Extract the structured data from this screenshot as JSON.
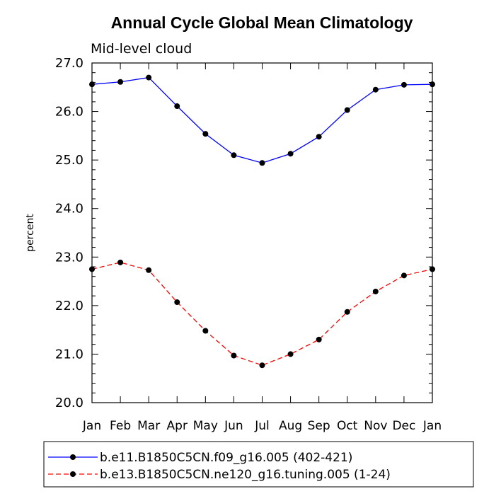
{
  "chart_data": {
    "type": "line",
    "title": "Annual Cycle Global Mean Climatology",
    "subtitle": "Mid-level cloud",
    "xlabel": "",
    "ylabel": "percent",
    "categories": [
      "Jan",
      "Feb",
      "Mar",
      "Apr",
      "May",
      "Jun",
      "Jul",
      "Aug",
      "Sep",
      "Oct",
      "Nov",
      "Dec",
      "Jan"
    ],
    "ylim": [
      20.0,
      27.0
    ],
    "yticks": [
      "20.0",
      "21.0",
      "22.0",
      "23.0",
      "24.0",
      "25.0",
      "26.0",
      "27.0"
    ],
    "grid": false,
    "legend_position": "bottom",
    "series": [
      {
        "name": "b.e11.B1850C5CN.f09_g16.005 (402-421)",
        "color": "#0000ff",
        "dash": "solid",
        "marker": "filled-circle",
        "values": [
          26.56,
          26.61,
          26.7,
          26.11,
          25.54,
          25.1,
          24.94,
          25.13,
          25.48,
          26.03,
          26.45,
          26.55,
          26.56
        ]
      },
      {
        "name": "b.e13.B1850C5CN.ne120_g16.tuning.005 (1-24)",
        "color": "#ff0000",
        "dash": "dashed",
        "marker": "filled-circle",
        "values": [
          22.75,
          22.89,
          22.73,
          22.07,
          21.48,
          20.97,
          20.77,
          21.0,
          21.3,
          21.87,
          22.29,
          22.62,
          22.75
        ]
      }
    ]
  }
}
